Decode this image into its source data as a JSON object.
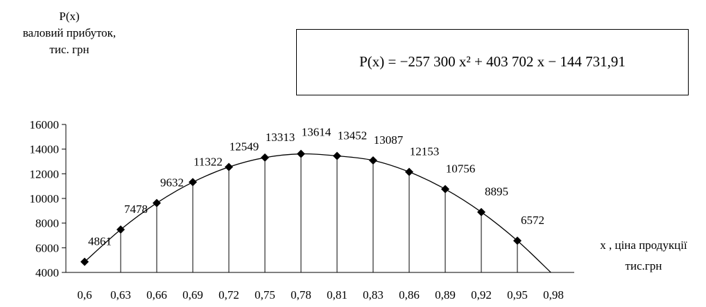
{
  "y_axis_title": [
    "P(x)",
    "валовий прибуток,",
    "тис. грн"
  ],
  "x_axis_title": [
    "x , ціна продукції",
    "тис.грн"
  ],
  "formula": "P(x) = −257 300 x² + 403 702 x − 144 731,91",
  "chart_data": {
    "type": "line",
    "categories": [
      "0,6",
      "0,63",
      "0,66",
      "0,69",
      "0,72",
      "0,75",
      "0,78",
      "0,81",
      "0,83",
      "0,86",
      "0,89",
      "0,92",
      "0,95",
      "0,98"
    ],
    "series": [
      {
        "values": [
          4861,
          7478,
          9632,
          11322,
          12549,
          13313,
          13614,
          13452,
          13087,
          12153,
          10756,
          8895,
          6572,
          3800
        ],
        "data_labels": [
          "4861",
          "7478",
          "9632",
          "11322",
          "12549",
          "13313",
          "13614",
          "13452",
          "13087",
          "12153",
          "10756",
          "8895",
          "6572",
          ""
        ]
      }
    ],
    "y_ticks": [
      "4000",
      "6000",
      "8000",
      "10000",
      "12000",
      "14000",
      "16000"
    ],
    "ylim": [
      4000,
      16000
    ],
    "marker": "diamond",
    "drop_lines": true,
    "grid": false,
    "legend": "none",
    "colors": {
      "line": "#000000",
      "marker": "#000000"
    }
  }
}
